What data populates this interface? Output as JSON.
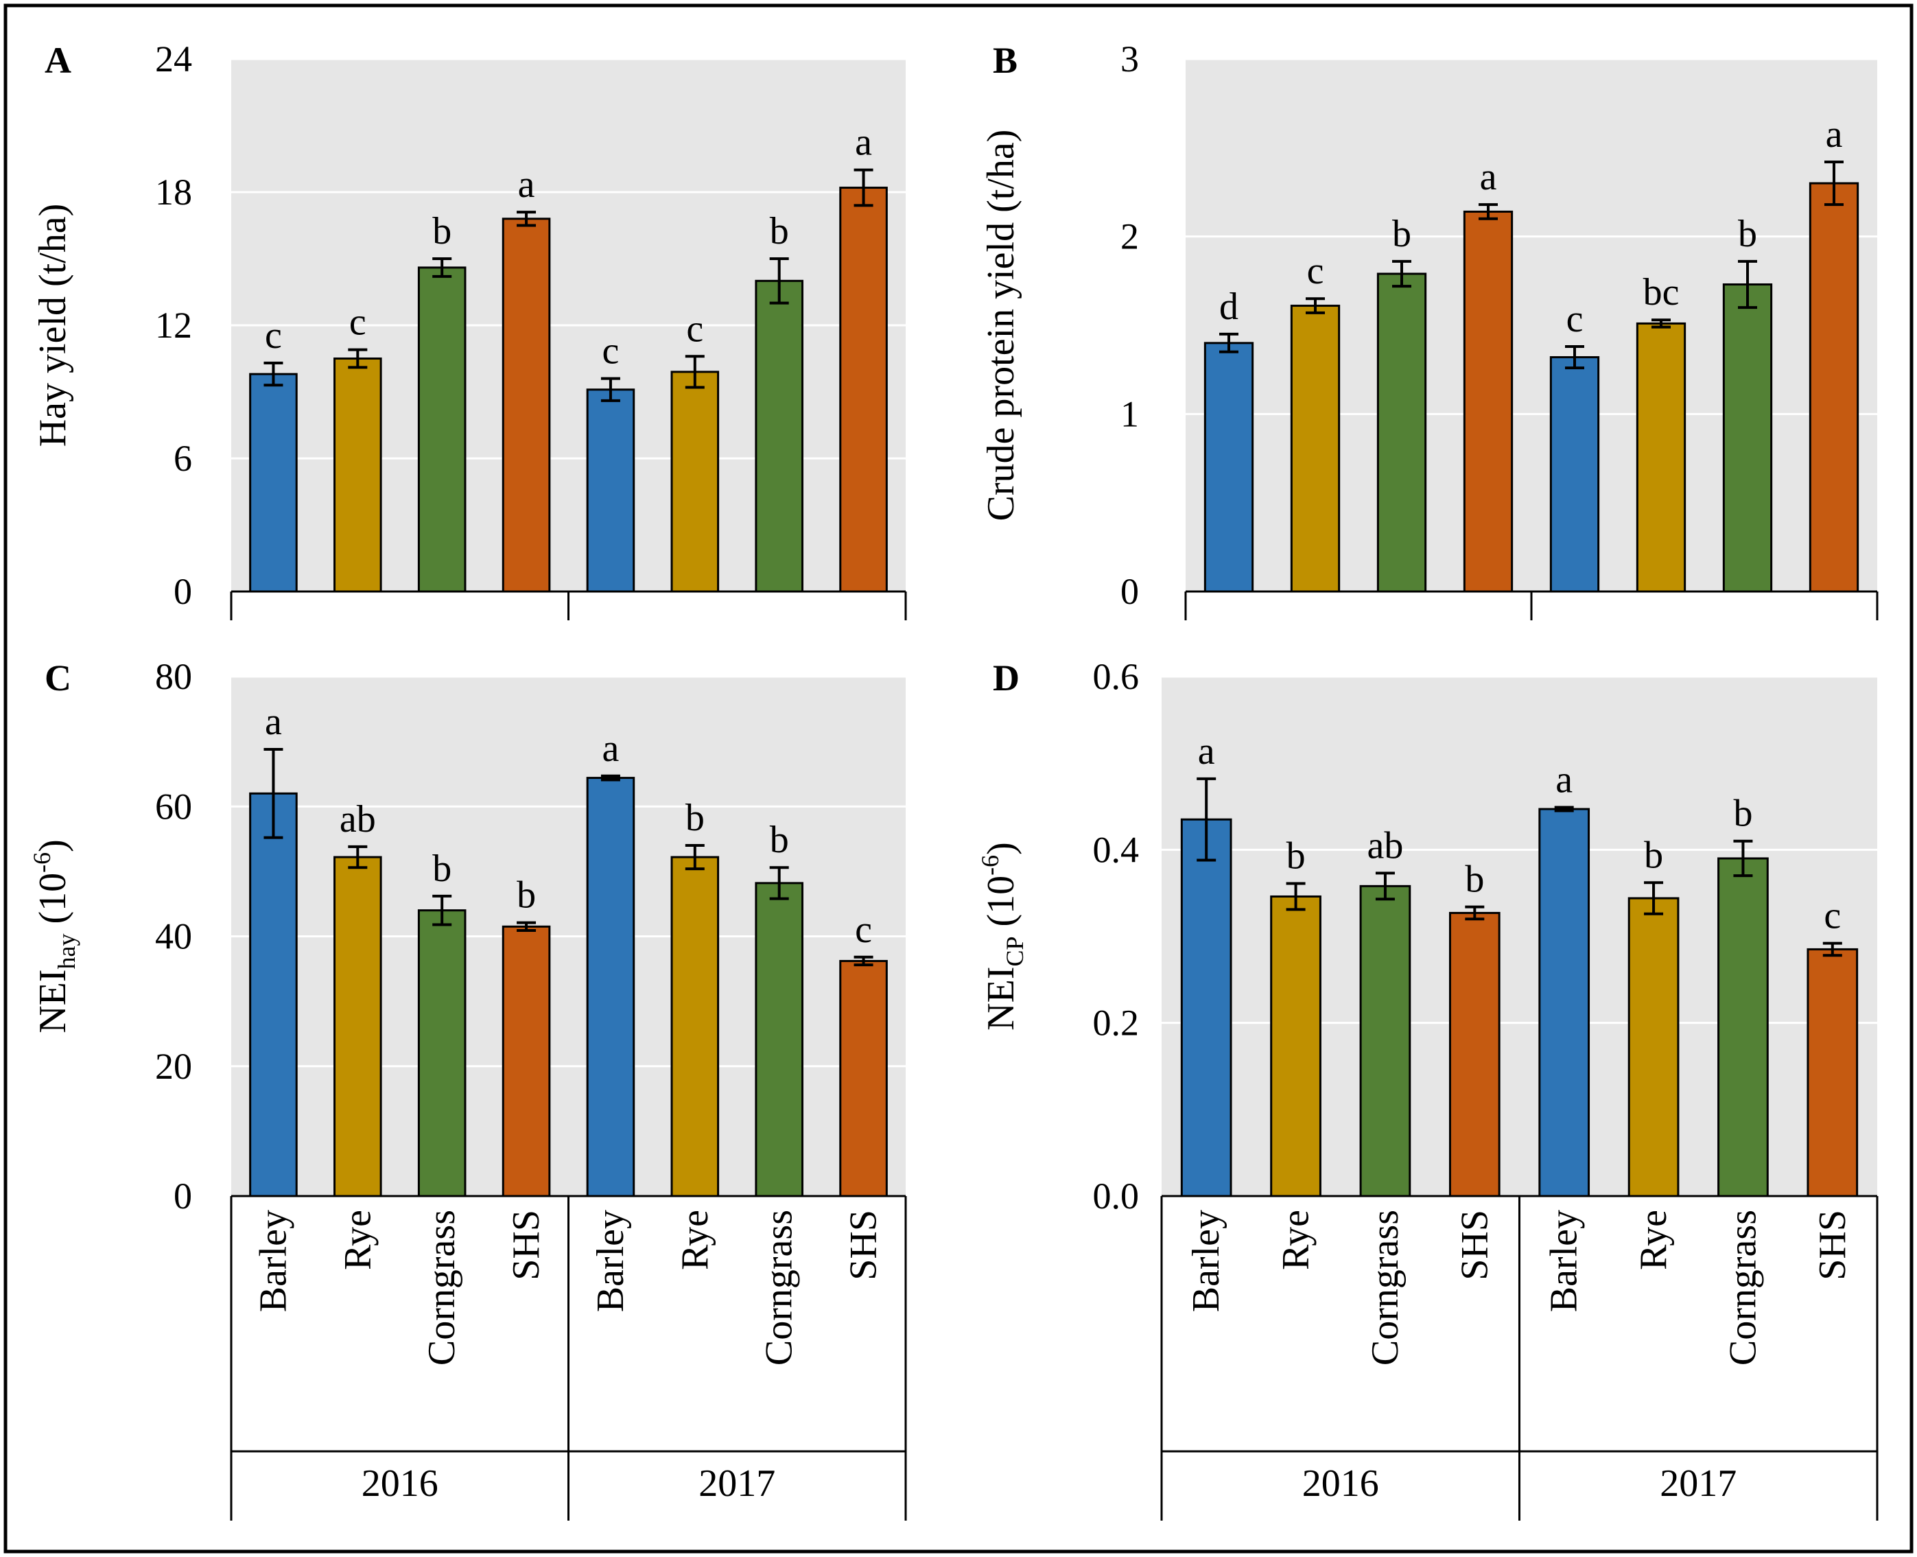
{
  "colors": {
    "plot_background": "#e6e6e6",
    "gridline": "#ffffff",
    "axis": "#000000",
    "border": "#000000"
  },
  "chart_data": [
    {
      "id": "A",
      "panel_label": "A",
      "type": "bar",
      "ylabel": "Hay yield (t/ha)",
      "ylim": [
        0,
        24
      ],
      "yticks": [
        "0",
        "6",
        "12",
        "18",
        "24"
      ],
      "tick_values": [
        0,
        6,
        12,
        18,
        24
      ],
      "grid": true,
      "groups": [
        {
          "name": "2016",
          "categories": [
            "Barley",
            "Rye",
            "Corngrass",
            "SHS"
          ],
          "values": [
            9.8,
            10.5,
            14.6,
            16.8
          ],
          "errors": [
            0.5,
            0.4,
            0.4,
            0.3
          ],
          "letters": [
            "c",
            "c",
            "b",
            "a"
          ],
          "colors": [
            "#2e75b6",
            "#bf9000",
            "#538135",
            "#c55a11"
          ]
        },
        {
          "name": "2017",
          "categories": [
            "Barley",
            "Rye",
            "Corngrass",
            "SHS"
          ],
          "values": [
            9.1,
            9.9,
            14.0,
            18.2
          ],
          "errors": [
            0.5,
            0.7,
            1.0,
            0.8
          ],
          "letters": [
            "c",
            "c",
            "b",
            "a"
          ],
          "colors": [
            "#2e75b6",
            "#bf9000",
            "#538135",
            "#c55a11"
          ]
        }
      ],
      "show_categories": false
    },
    {
      "id": "B",
      "panel_label": "B",
      "type": "bar",
      "ylabel": "Crude protein yield (t/ha)",
      "ylim": [
        0,
        3
      ],
      "yticks": [
        "0",
        "1",
        "2",
        "3"
      ],
      "tick_values": [
        0,
        1,
        2,
        3
      ],
      "grid": true,
      "groups": [
        {
          "name": "2016",
          "categories": [
            "Barley",
            "Rye",
            "Corngrass",
            "SHS"
          ],
          "values": [
            1.4,
            1.61,
            1.79,
            2.14
          ],
          "errors": [
            0.05,
            0.04,
            0.07,
            0.04
          ],
          "letters": [
            "d",
            "c",
            "b",
            "a"
          ],
          "colors": [
            "#2e75b6",
            "#bf9000",
            "#538135",
            "#c55a11"
          ]
        },
        {
          "name": "2017",
          "categories": [
            "Barley",
            "Rye",
            "Corngrass",
            "SHS"
          ],
          "values": [
            1.32,
            1.51,
            1.73,
            2.3
          ],
          "errors": [
            0.06,
            0.02,
            0.13,
            0.12
          ],
          "letters": [
            "c",
            "bc",
            "b",
            "a"
          ],
          "colors": [
            "#2e75b6",
            "#bf9000",
            "#538135",
            "#c55a11"
          ]
        }
      ],
      "show_categories": false
    },
    {
      "id": "C",
      "panel_label": "C",
      "type": "bar",
      "ylabel_main": "NEI",
      "ylabel_sub": "hay",
      "ylabel_tail": " (10",
      "ylabel_sup": "-6",
      "ylabel_end": ")",
      "ylim": [
        0,
        80
      ],
      "yticks": [
        "0",
        "20",
        "40",
        "60",
        "80"
      ],
      "tick_values": [
        0,
        20,
        40,
        60,
        80
      ],
      "grid": true,
      "groups": [
        {
          "name": "2016",
          "categories": [
            "Barley",
            "Rye",
            "Corngrass",
            "SHS"
          ],
          "values": [
            62,
            52.2,
            44,
            41.5
          ],
          "errors": [
            6.8,
            1.6,
            2.2,
            0.6
          ],
          "letters": [
            "a",
            "ab",
            "b",
            "b"
          ],
          "colors": [
            "#2e75b6",
            "#bf9000",
            "#538135",
            "#c55a11"
          ]
        },
        {
          "name": "2017",
          "categories": [
            "Barley",
            "Rye",
            "Corngrass",
            "SHS"
          ],
          "values": [
            64.4,
            52.2,
            48.2,
            36.2
          ],
          "errors": [
            0.3,
            1.8,
            2.4,
            0.6
          ],
          "letters": [
            "a",
            "b",
            "b",
            "c"
          ],
          "colors": [
            "#2e75b6",
            "#bf9000",
            "#538135",
            "#c55a11"
          ]
        }
      ],
      "show_categories": true
    },
    {
      "id": "D",
      "panel_label": "D",
      "type": "bar",
      "ylabel_main": "NEI",
      "ylabel_sub": "CP",
      "ylabel_tail": " (10",
      "ylabel_sup": "-6",
      "ylabel_end": ")",
      "ylim": [
        0,
        0.6
      ],
      "yticks": [
        "0.0",
        "0.2",
        "0.4",
        "0.6"
      ],
      "tick_values": [
        0,
        0.2,
        0.4,
        0.6
      ],
      "grid": true,
      "groups": [
        {
          "name": "2016",
          "categories": [
            "Barley",
            "Rye",
            "Corngrass",
            "SHS"
          ],
          "values": [
            0.435,
            0.346,
            0.358,
            0.327
          ],
          "errors": [
            0.047,
            0.015,
            0.015,
            0.007
          ],
          "letters": [
            "a",
            "b",
            "ab",
            "b"
          ],
          "colors": [
            "#2e75b6",
            "#bf9000",
            "#538135",
            "#c55a11"
          ]
        },
        {
          "name": "2017",
          "categories": [
            "Barley",
            "Rye",
            "Corngrass",
            "SHS"
          ],
          "values": [
            0.447,
            0.344,
            0.39,
            0.285
          ],
          "errors": [
            0.002,
            0.018,
            0.02,
            0.007
          ],
          "letters": [
            "a",
            "b",
            "b",
            "c"
          ],
          "colors": [
            "#2e75b6",
            "#bf9000",
            "#538135",
            "#c55a11"
          ]
        }
      ],
      "show_categories": true
    }
  ]
}
